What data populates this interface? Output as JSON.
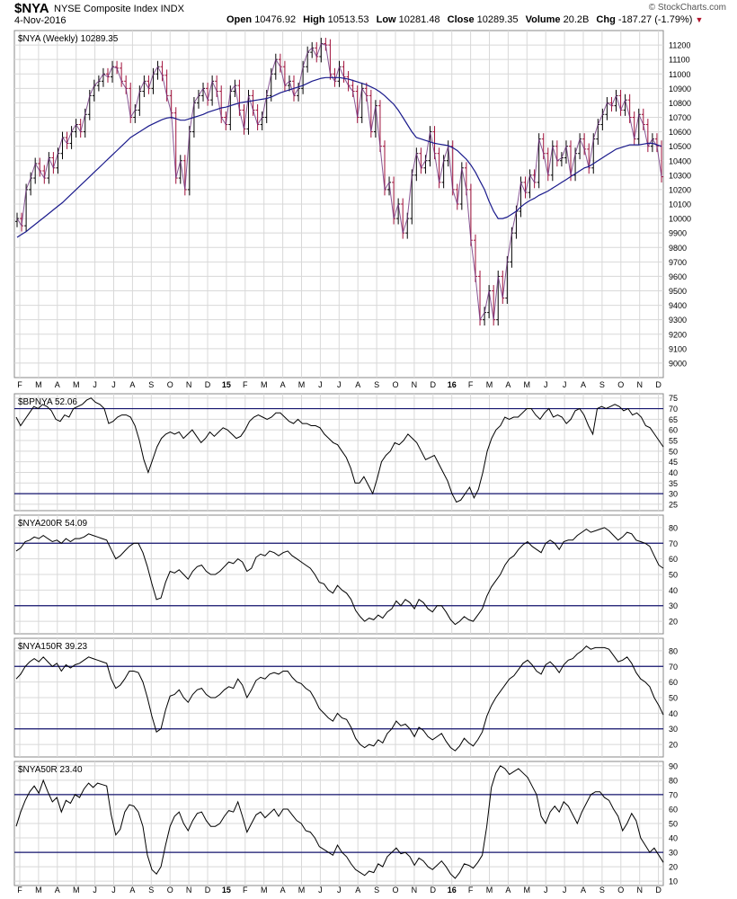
{
  "header": {
    "symbol": "$NYA",
    "name": "NYSE Composite Index",
    "exchange": "INDX",
    "date": "4-Nov-2016",
    "copyright": "© StockCharts.com",
    "open_label": "Open",
    "open": "10476.92",
    "high_label": "High",
    "high": "10513.53",
    "low_label": "Low",
    "low": "10281.48",
    "close_label": "Close",
    "close": "10289.35",
    "volume_label": "Volume",
    "volume": "20.2B",
    "chg_label": "Chg",
    "chg": "-187.27 (-1.79%)",
    "chg_icon": "down-triangle-icon"
  },
  "colors": {
    "ma_line": "#1a1a8c",
    "up_bar": "#000000",
    "down_bar": "#a0103a",
    "ref_line": "#14146e",
    "grid": "#d8d8d8"
  },
  "x_axis_labels": [
    "F",
    "M",
    "A",
    "M",
    "J",
    "J",
    "A",
    "S",
    "O",
    "N",
    "D",
    "15",
    "F",
    "M",
    "A",
    "M",
    "J",
    "J",
    "A",
    "S",
    "O",
    "N",
    "D",
    "16",
    "F",
    "M",
    "A",
    "M",
    "J",
    "J",
    "A",
    "S",
    "O",
    "N",
    "D"
  ],
  "chart_data": [
    {
      "type": "ohlc",
      "title": "$NYA (Weekly) 10289.35",
      "ylim": [
        8900,
        11300
      ],
      "yticks": [
        9000,
        9100,
        9200,
        9300,
        9400,
        9500,
        9600,
        9700,
        9800,
        9900,
        10000,
        10100,
        10200,
        10300,
        10400,
        10500,
        10600,
        10700,
        10800,
        10900,
        11000,
        11100,
        11200
      ],
      "overlay": "30-week moving average",
      "close": [
        10000,
        9950,
        10200,
        10280,
        10380,
        10330,
        10280,
        10420,
        10350,
        10450,
        10560,
        10520,
        10600,
        10650,
        10600,
        10720,
        10850,
        10920,
        10950,
        11000,
        10980,
        11050,
        11040,
        10950,
        10900,
        10700,
        10750,
        10880,
        10950,
        10900,
        11000,
        11050,
        10990,
        10850,
        10730,
        10280,
        10400,
        10200,
        10600,
        10800,
        10850,
        10900,
        10820,
        10950,
        10880,
        10700,
        10650,
        10880,
        10920,
        10750,
        10620,
        10850,
        10750,
        10650,
        10700,
        10850,
        11000,
        11100,
        11050,
        10920,
        10950,
        10850,
        10900,
        11050,
        11150,
        11180,
        11120,
        11210,
        11200,
        11000,
        10950,
        11050,
        10980,
        10920,
        10880,
        10700,
        10900,
        10850,
        10600,
        10780,
        10500,
        10200,
        10250,
        10000,
        10100,
        9900,
        10000,
        10300,
        10450,
        10350,
        10400,
        10600,
        10450,
        10250,
        10400,
        10500,
        10200,
        10100,
        10350,
        10200,
        9850,
        9600,
        9300,
        9350,
        9500,
        9300,
        9600,
        9450,
        9700,
        9900,
        10050,
        10250,
        10180,
        10300,
        10250,
        10550,
        10450,
        10300,
        10500,
        10400,
        10420,
        10500,
        10300,
        10450,
        10550,
        10480,
        10350,
        10550,
        10650,
        10720,
        10800,
        10780,
        10850,
        10750,
        10820,
        10700,
        10550,
        10720,
        10650,
        10500,
        10550,
        10500,
        10289
      ],
      "ma": [
        9870,
        9890,
        9910,
        9935,
        9960,
        9985,
        10010,
        10035,
        10060,
        10085,
        10110,
        10140,
        10170,
        10200,
        10230,
        10260,
        10290,
        10320,
        10350,
        10380,
        10410,
        10440,
        10470,
        10500,
        10530,
        10560,
        10580,
        10600,
        10620,
        10640,
        10655,
        10670,
        10685,
        10695,
        10700,
        10690,
        10680,
        10680,
        10690,
        10700,
        10710,
        10720,
        10735,
        10745,
        10755,
        10765,
        10770,
        10780,
        10790,
        10800,
        10805,
        10810,
        10815,
        10820,
        10825,
        10830,
        10840,
        10855,
        10870,
        10880,
        10890,
        10900,
        10910,
        10920,
        10935,
        10950,
        10960,
        10970,
        10975,
        10975,
        10975,
        10975,
        10970,
        10965,
        10955,
        10945,
        10935,
        10925,
        10910,
        10895,
        10875,
        10850,
        10820,
        10790,
        10750,
        10700,
        10650,
        10600,
        10560,
        10550,
        10540,
        10530,
        10520,
        10515,
        10510,
        10505,
        10490,
        10470,
        10440,
        10410,
        10370,
        10320,
        10260,
        10200,
        10120,
        10050,
        10000,
        10000,
        10010,
        10030,
        10050,
        10080,
        10105,
        10125,
        10140,
        10160,
        10175,
        10190,
        10210,
        10230,
        10250,
        10270,
        10290,
        10310,
        10330,
        10350,
        10360,
        10380,
        10400,
        10420,
        10440,
        10460,
        10480,
        10490,
        10500,
        10510,
        10510,
        10510,
        10515,
        10520,
        10520,
        10510,
        10500
      ]
    },
    {
      "type": "line",
      "title": "$BPNYA 52.06",
      "ylim": [
        22,
        77
      ],
      "yticks": [
        25,
        30,
        35,
        40,
        45,
        50,
        55,
        60,
        65,
        70,
        75
      ],
      "reference_lines": [
        30,
        70
      ],
      "values": [
        66,
        62,
        65,
        68,
        71,
        70,
        72,
        71,
        69,
        65,
        64,
        67,
        66,
        70,
        71,
        72,
        74,
        75,
        73,
        72,
        70,
        63,
        64,
        66,
        67,
        67,
        66,
        62,
        55,
        46,
        40,
        46,
        52,
        56,
        58,
        59,
        58,
        59,
        56,
        58,
        60,
        57,
        54,
        56,
        59,
        57,
        59,
        61,
        60,
        58,
        56,
        57,
        60,
        64,
        66,
        67,
        66,
        65,
        66,
        68,
        68,
        66,
        64,
        63,
        65,
        63,
        63,
        62,
        62,
        61,
        58,
        56,
        54,
        53,
        50,
        47,
        42,
        35,
        35,
        38,
        34,
        30,
        37,
        45,
        48,
        50,
        54,
        53,
        55,
        58,
        56,
        54,
        50,
        46,
        47,
        48,
        44,
        40,
        36,
        30,
        26,
        27,
        30,
        33,
        28,
        32,
        40,
        50,
        56,
        60,
        62,
        66,
        65,
        66,
        66,
        68,
        70,
        70,
        67,
        65,
        68,
        70,
        66,
        67,
        66,
        63,
        65,
        69,
        70,
        67,
        62,
        58,
        70,
        71,
        70,
        71,
        72,
        71,
        69,
        70,
        67,
        68,
        66,
        62,
        61,
        58,
        55,
        52
      ]
    },
    {
      "type": "line",
      "title": "$NYA200R 54.09",
      "ylim": [
        12,
        88
      ],
      "yticks": [
        20,
        30,
        40,
        50,
        60,
        70,
        80
      ],
      "reference_lines": [
        30,
        70
      ],
      "values": [
        65,
        67,
        71,
        72,
        74,
        73,
        75,
        73,
        71,
        72,
        70,
        73,
        71,
        73,
        73,
        74,
        76,
        75,
        74,
        73,
        72,
        66,
        60,
        62,
        65,
        68,
        70,
        70,
        64,
        55,
        44,
        34,
        35,
        45,
        52,
        51,
        53,
        50,
        47,
        52,
        55,
        56,
        52,
        50,
        50,
        52,
        55,
        58,
        57,
        60,
        58,
        52,
        54,
        61,
        63,
        62,
        65,
        64,
        62,
        64,
        65,
        62,
        60,
        58,
        56,
        54,
        50,
        45,
        44,
        40,
        38,
        43,
        40,
        38,
        34,
        27,
        23,
        20,
        22,
        21,
        24,
        22,
        26,
        28,
        33,
        30,
        34,
        32,
        28,
        34,
        32,
        28,
        26,
        30,
        30,
        26,
        21,
        18,
        20,
        23,
        21,
        20,
        24,
        28,
        36,
        42,
        46,
        50,
        56,
        60,
        62,
        66,
        69,
        71,
        68,
        66,
        64,
        70,
        72,
        70,
        66,
        71,
        72,
        72,
        75,
        77,
        79,
        77,
        78,
        79,
        80,
        78,
        75,
        72,
        74,
        77,
        76,
        72,
        71,
        70,
        68,
        62,
        56,
        54
      ]
    },
    {
      "type": "line",
      "title": "$NYA150R 39.23",
      "ylim": [
        12,
        88
      ],
      "yticks": [
        20,
        30,
        40,
        50,
        60,
        70,
        80
      ],
      "reference_lines": [
        30,
        70
      ],
      "values": [
        62,
        65,
        70,
        73,
        75,
        73,
        76,
        73,
        70,
        72,
        67,
        71,
        69,
        71,
        72,
        74,
        76,
        75,
        74,
        73,
        72,
        62,
        56,
        58,
        62,
        67,
        67,
        66,
        60,
        50,
        38,
        28,
        30,
        42,
        51,
        52,
        55,
        50,
        47,
        52,
        55,
        56,
        52,
        50,
        50,
        52,
        55,
        57,
        56,
        62,
        58,
        50,
        55,
        61,
        63,
        62,
        65,
        66,
        65,
        67,
        67,
        63,
        60,
        59,
        56,
        54,
        49,
        43,
        40,
        37,
        35,
        40,
        37,
        36,
        31,
        24,
        20,
        18,
        20,
        19,
        23,
        21,
        27,
        30,
        35,
        32,
        33,
        30,
        25,
        31,
        29,
        25,
        23,
        25,
        27,
        22,
        18,
        16,
        19,
        24,
        21,
        19,
        23,
        28,
        38,
        45,
        50,
        54,
        58,
        62,
        64,
        68,
        72,
        74,
        71,
        67,
        65,
        71,
        73,
        70,
        66,
        71,
        74,
        75,
        78,
        80,
        83,
        81,
        82,
        82,
        82,
        81,
        77,
        73,
        74,
        76,
        72,
        66,
        62,
        60,
        57,
        50,
        45,
        39
      ]
    },
    {
      "type": "line",
      "title": "$NYA50R 23.40",
      "ylim": [
        7,
        93
      ],
      "yticks": [
        10,
        20,
        30,
        40,
        50,
        60,
        70,
        80,
        90
      ],
      "reference_lines": [
        30,
        70
      ],
      "values": [
        48,
        58,
        66,
        72,
        76,
        71,
        80,
        72,
        65,
        68,
        58,
        66,
        64,
        70,
        68,
        74,
        78,
        75,
        78,
        77,
        76,
        56,
        42,
        46,
        58,
        63,
        62,
        58,
        48,
        28,
        18,
        15,
        20,
        35,
        48,
        55,
        58,
        50,
        45,
        52,
        57,
        58,
        52,
        48,
        48,
        50,
        55,
        59,
        58,
        65,
        55,
        44,
        50,
        56,
        58,
        54,
        57,
        60,
        55,
        60,
        60,
        56,
        52,
        50,
        45,
        44,
        40,
        34,
        32,
        30,
        28,
        35,
        30,
        27,
        22,
        18,
        16,
        14,
        17,
        16,
        22,
        20,
        27,
        30,
        33,
        29,
        30,
        27,
        21,
        26,
        24,
        20,
        18,
        21,
        24,
        20,
        15,
        12,
        16,
        22,
        21,
        19,
        23,
        28,
        48,
        75,
        85,
        90,
        88,
        84,
        86,
        88,
        85,
        82,
        76,
        70,
        55,
        50,
        58,
        62,
        58,
        65,
        62,
        56,
        50,
        58,
        64,
        70,
        72,
        72,
        68,
        66,
        60,
        55,
        45,
        50,
        57,
        52,
        40,
        35,
        30,
        33,
        28,
        23
      ]
    }
  ]
}
